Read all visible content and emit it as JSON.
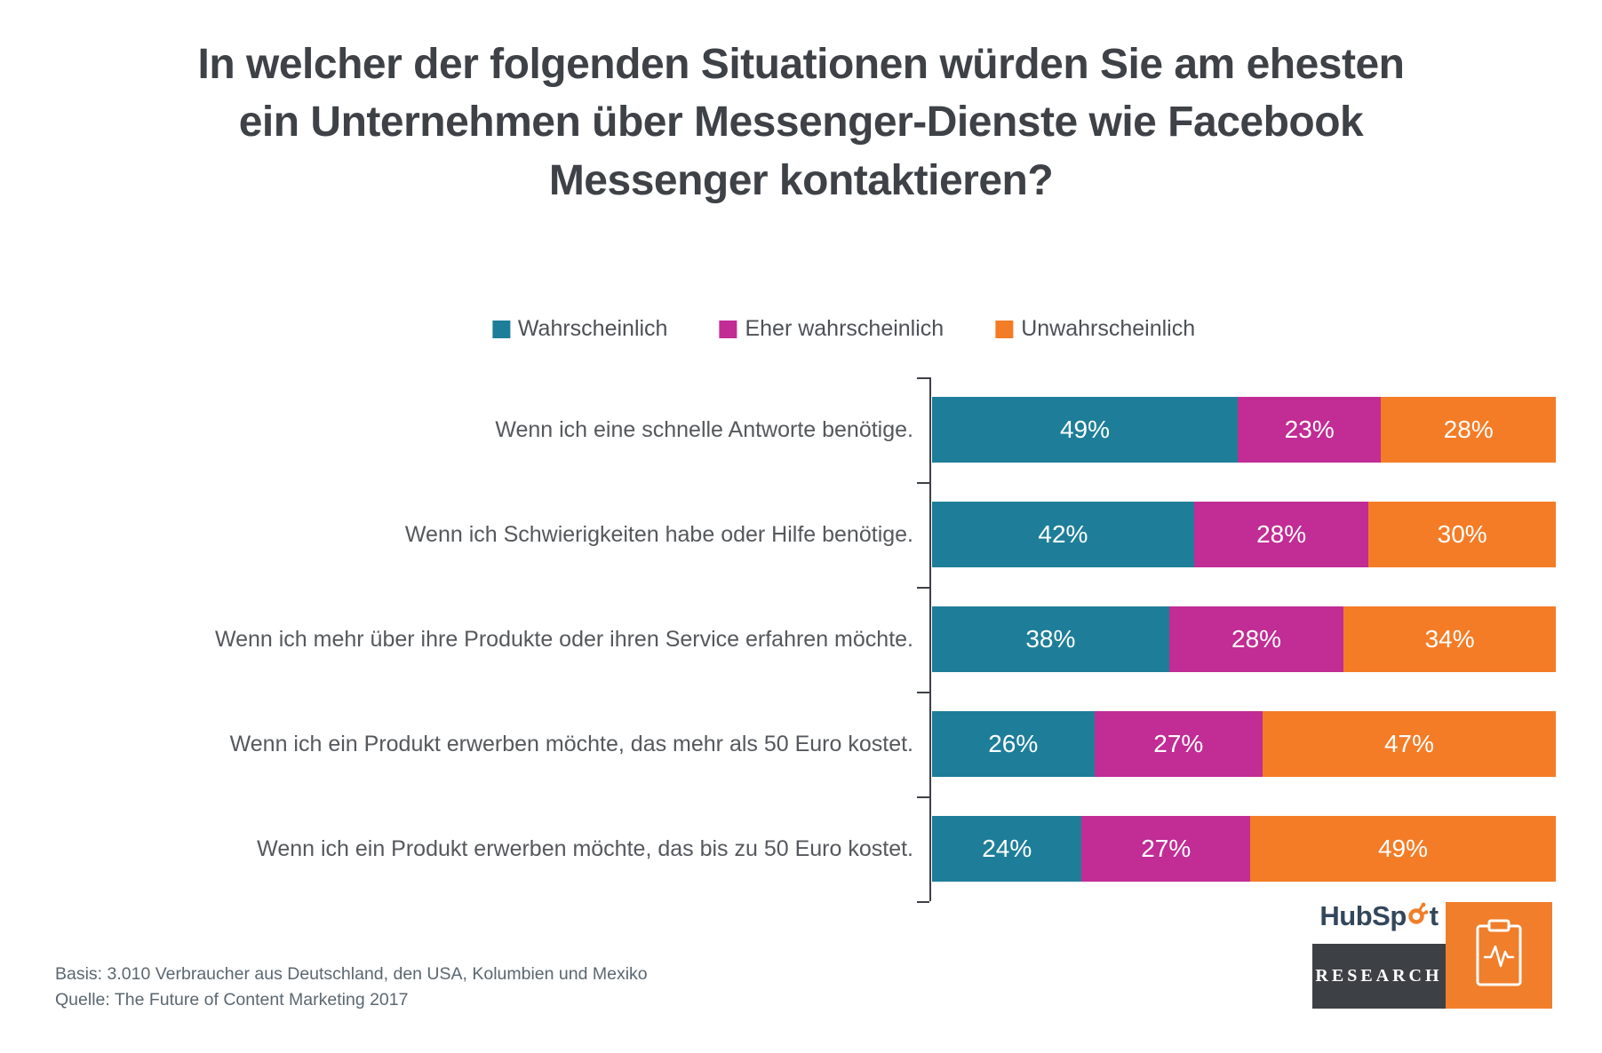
{
  "title_lines": [
    "In welcher der folgenden Situationen würden Sie am ehesten",
    "ein Unternehmen über Messenger-Dienste wie Facebook",
    "Messenger kontaktieren?"
  ],
  "chart_data": {
    "type": "bar",
    "orientation": "horizontal",
    "stacked": true,
    "title": "In welcher der folgenden Situationen würden Sie am ehesten ein Unternehmen über Messenger-Dienste wie Facebook Messenger kontaktieren?",
    "categories": [
      "Wenn ich eine schnelle Antworte benötige.",
      "Wenn ich Schwierigkeiten habe oder Hilfe benötige.",
      "Wenn ich mehr über ihre Produkte oder ihren Service erfahren möchte.",
      "Wenn ich ein Produkt erwerben möchte, das mehr als 50 Euro kostet.",
      "Wenn ich ein Produkt erwerben möchte, das bis zu 50 Euro kostet."
    ],
    "series": [
      {
        "name": "Wahrscheinlich",
        "color": "#1e7e99",
        "values": [
          49,
          42,
          38,
          26,
          24
        ]
      },
      {
        "name": "Eher wahrscheinlich",
        "color": "#c12c95",
        "values": [
          23,
          28,
          28,
          27,
          27
        ]
      },
      {
        "name": "Unwahrscheinlich",
        "color": "#f47c26",
        "values": [
          28,
          30,
          34,
          47,
          49
        ]
      }
    ],
    "value_suffix": "%",
    "xlim": [
      0,
      100
    ],
    "grid": false,
    "legend_position": "top"
  },
  "footer": {
    "basis": "Basis: 3.010 Verbraucher aus Deutschland, den USA, Kolumbien und Mexiko",
    "quelle": "Quelle: The Future of Content Marketing 2017"
  },
  "branding": {
    "wordmark_prefix": "HubSp",
    "wordmark_suffix": "t",
    "research_label": "RESEARCH",
    "orange": "#f07e2a",
    "dark": "#3d4045"
  }
}
